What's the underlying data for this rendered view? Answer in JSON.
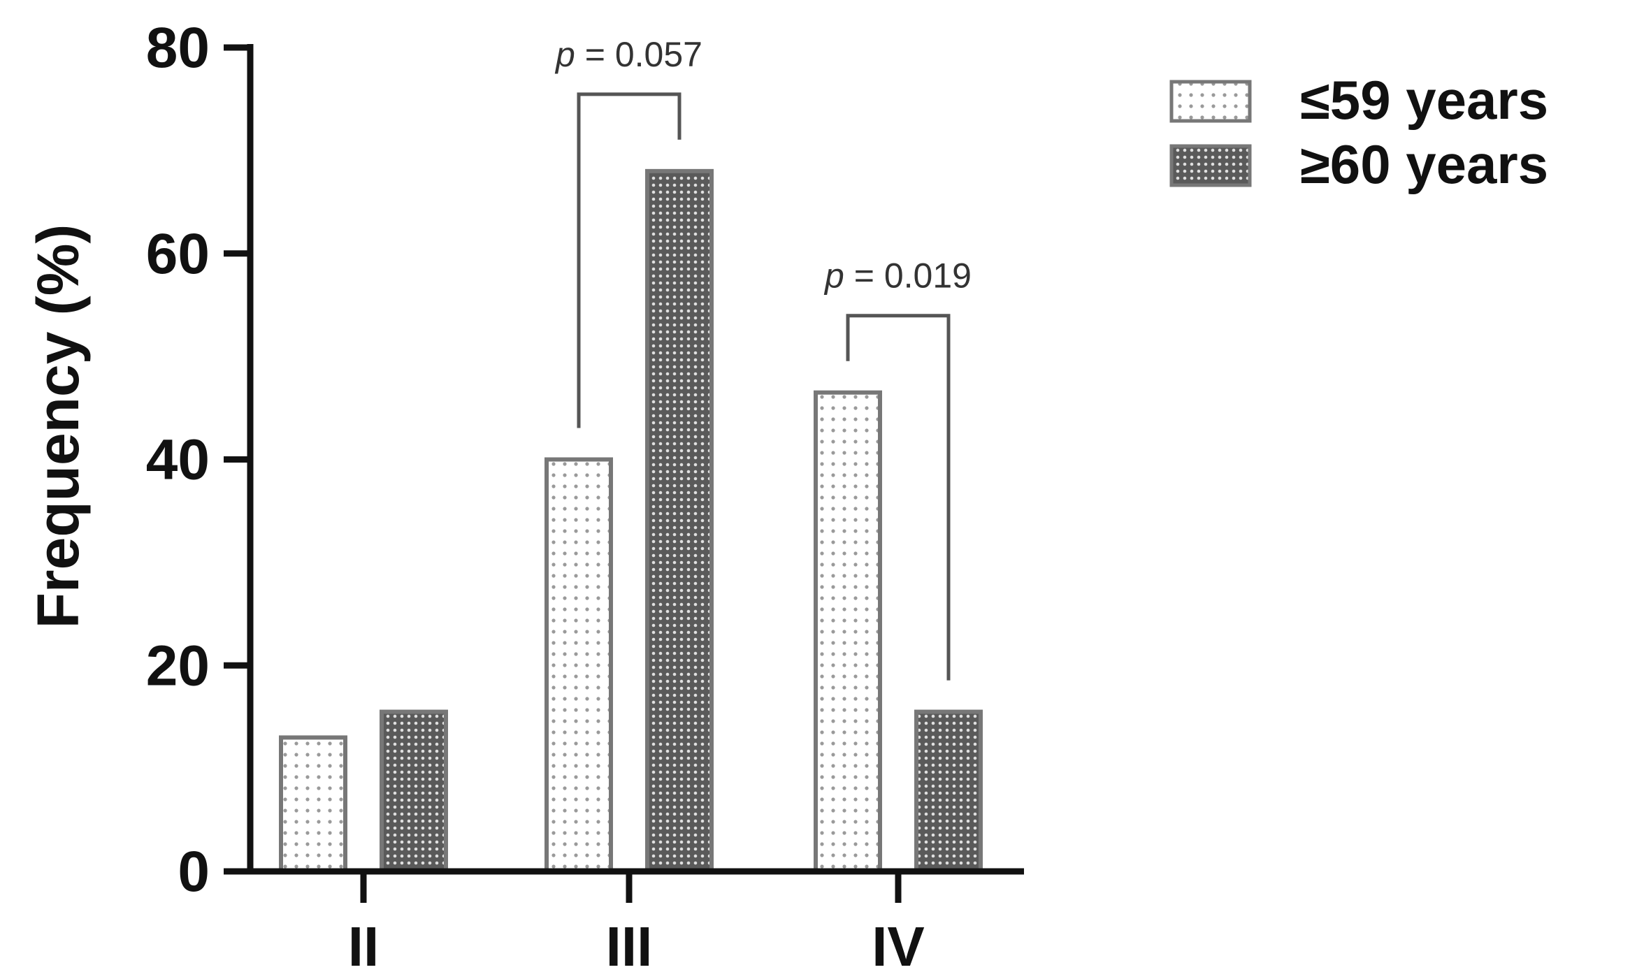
{
  "chart_data": {
    "type": "bar",
    "title": "",
    "xlabel": "",
    "ylabel": "Frequency (%)",
    "ylim": [
      0,
      80
    ],
    "yticks": [
      0,
      20,
      40,
      60,
      80
    ],
    "categories": [
      "II",
      "III",
      "IV"
    ],
    "series": [
      {
        "name": "≤59 years",
        "values": [
          13,
          40,
          46.5
        ],
        "pattern": "light-dotted",
        "color": "#ffffff"
      },
      {
        "name": "≥60 years",
        "values": [
          15.5,
          68,
          15.5
        ],
        "pattern": "dense-dotted",
        "color": "#555555"
      }
    ],
    "legend_position": "top-right",
    "annotations": [
      {
        "category": "III",
        "p_label": "p",
        "text": " = 0.057"
      },
      {
        "category": "IV",
        "p_label": "p",
        "text": " = 0.019"
      }
    ],
    "grid": false
  },
  "colors": {
    "axis": "#111111",
    "bar_edge": "#777777",
    "bracket": "#555555"
  }
}
